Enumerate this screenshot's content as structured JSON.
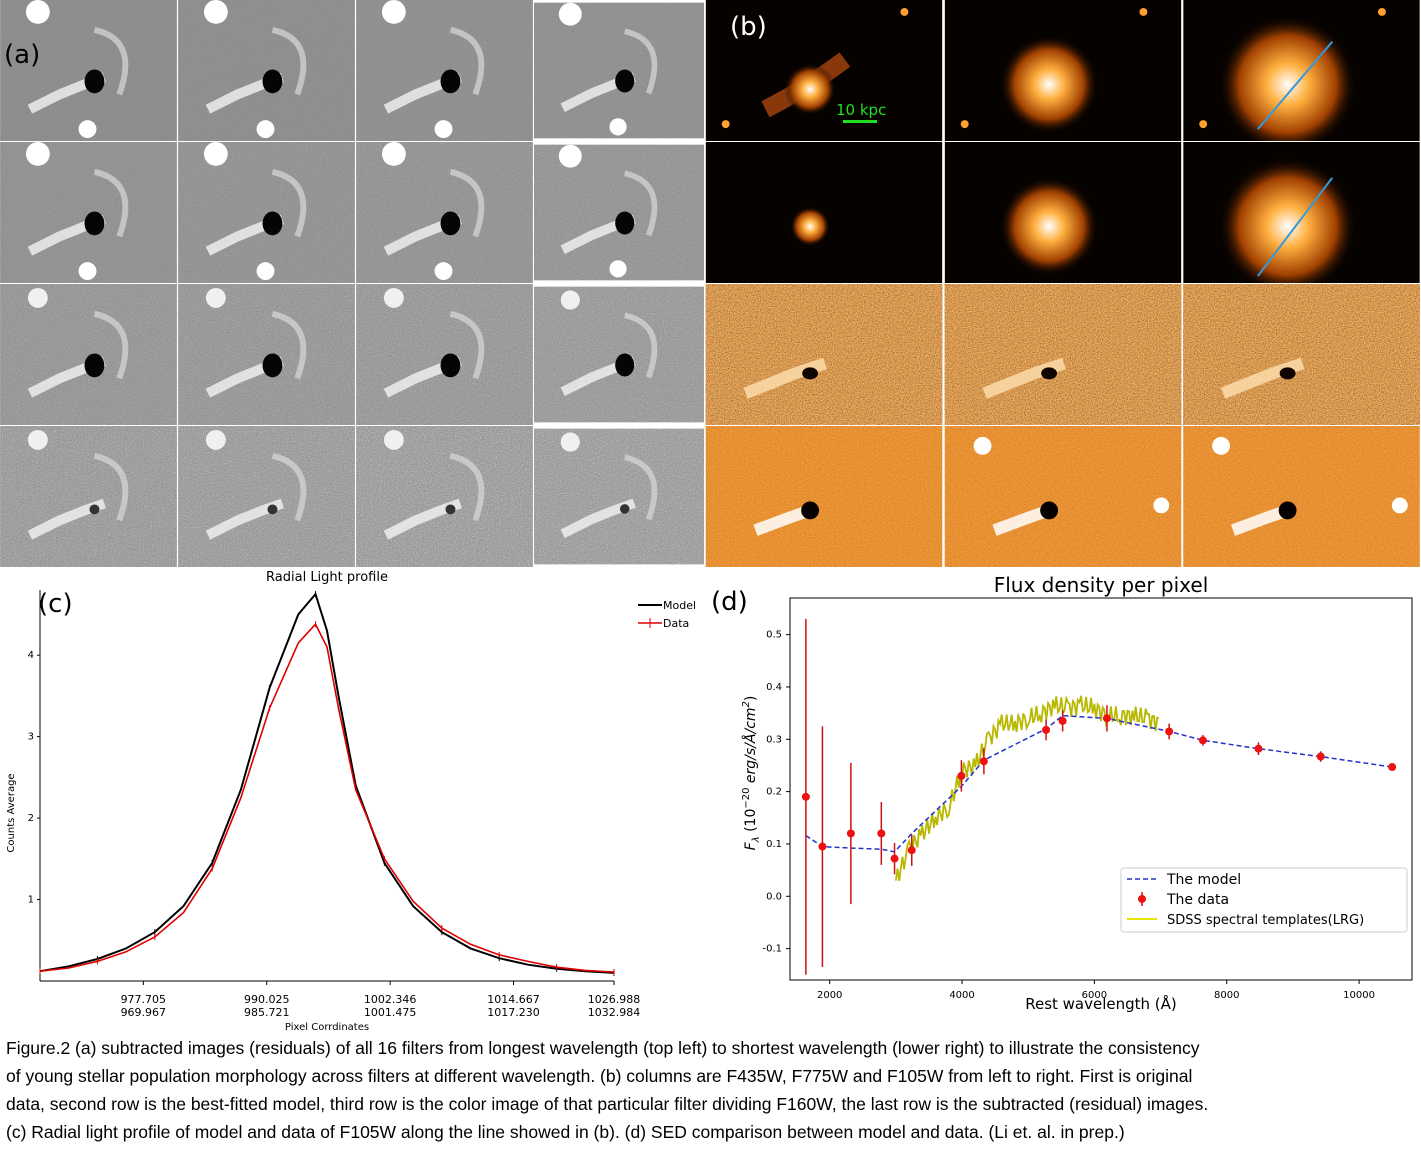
{
  "panel_a": {
    "label": "(a)"
  },
  "panel_b": {
    "label": "(b)",
    "scale_bar_label": "10 kpc"
  },
  "chart_data": [
    {
      "type": "line",
      "panel_label": "(c)",
      "title": "Radial Light profile",
      "xlabel": "Pixel Corrdinates",
      "ylabel": "Counts Average",
      "x_tick_labels_top": [
        "977.705",
        "990.025",
        "1002.346",
        "1014.667",
        "1026.988"
      ],
      "x_tick_labels_bottom": [
        "969.967",
        "985.721",
        "1001.475",
        "1017.230",
        "1032.984"
      ],
      "y_ticks": [
        1,
        2,
        3,
        4
      ],
      "ylim": [
        0,
        4.8
      ],
      "legend_position": "top-right",
      "x": [
        0,
        5,
        10,
        15,
        20,
        25,
        30,
        35,
        40,
        45,
        48,
        50,
        52,
        55,
        60,
        65,
        70,
        75,
        80,
        85,
        90,
        95,
        100
      ],
      "series": [
        {
          "name": "Model",
          "color": "#000000",
          "values": [
            0.12,
            0.18,
            0.27,
            0.4,
            0.6,
            0.92,
            1.45,
            2.35,
            3.6,
            4.5,
            4.75,
            4.3,
            3.5,
            2.4,
            1.45,
            0.92,
            0.6,
            0.4,
            0.28,
            0.2,
            0.15,
            0.12,
            0.1
          ]
        },
        {
          "name": "Data",
          "color": "#dd0000",
          "values": [
            0.12,
            0.16,
            0.24,
            0.36,
            0.54,
            0.84,
            1.38,
            2.25,
            3.35,
            4.15,
            4.38,
            4.1,
            3.35,
            2.35,
            1.5,
            0.98,
            0.65,
            0.45,
            0.32,
            0.24,
            0.17,
            0.13,
            0.11
          ]
        }
      ]
    },
    {
      "type": "scatter",
      "panel_label": "(d)",
      "title": "Flux density per pixel",
      "xlabel": "Rest wavelength (Å)",
      "ylabel": "F_λ (10^-20 erg/s/Å/cm^2)",
      "ylabel_main": "F",
      "ylabel_sub": "λ",
      "ylabel_rest": " (10",
      "ylabel_exp": "−20",
      "ylabel_tail": " erg/s/Å/cm",
      "ylabel_tail_exp": "2",
      "ylabel_close": ")",
      "xlim": [
        1400,
        10800
      ],
      "ylim": [
        -0.16,
        0.57
      ],
      "x_ticks": [
        2000,
        4000,
        6000,
        8000,
        10000
      ],
      "y_ticks": [
        -0.1,
        0.0,
        0.1,
        0.2,
        0.3,
        0.4,
        0.5
      ],
      "legend_position": "lower-right",
      "legend": [
        "The model",
        "The data",
        "SDSS spectral templates(LRG)"
      ],
      "data_points": [
        {
          "x": 1640,
          "y": 0.19,
          "err": 0.34
        },
        {
          "x": 1890,
          "y": 0.095,
          "err": 0.23
        },
        {
          "x": 2320,
          "y": 0.12,
          "err": 0.135
        },
        {
          "x": 2780,
          "y": 0.12,
          "err": 0.06
        },
        {
          "x": 2980,
          "y": 0.072,
          "err": 0.03
        },
        {
          "x": 3240,
          "y": 0.088,
          "err": 0.03
        },
        {
          "x": 3990,
          "y": 0.23,
          "err": 0.03
        },
        {
          "x": 4330,
          "y": 0.258,
          "err": 0.025
        },
        {
          "x": 5270,
          "y": 0.318,
          "err": 0.02
        },
        {
          "x": 5520,
          "y": 0.335,
          "err": 0.02
        },
        {
          "x": 6190,
          "y": 0.34,
          "err": 0.025
        },
        {
          "x": 7130,
          "y": 0.315,
          "err": 0.015
        },
        {
          "x": 7640,
          "y": 0.298,
          "err": 0.01
        },
        {
          "x": 8480,
          "y": 0.282,
          "err": 0.012
        },
        {
          "x": 9420,
          "y": 0.267,
          "err": 0.01
        },
        {
          "x": 10500,
          "y": 0.247,
          "err": 0.006
        }
      ],
      "model_x": [
        1640,
        1890,
        2320,
        2780,
        2980,
        3240,
        3990,
        4330,
        5270,
        5520,
        6190,
        7130,
        7640,
        8480,
        9420,
        10500
      ],
      "model_y": [
        0.116,
        0.095,
        0.092,
        0.09,
        0.085,
        0.12,
        0.21,
        0.26,
        0.32,
        0.345,
        0.34,
        0.315,
        0.298,
        0.282,
        0.267,
        0.247
      ],
      "template_x": [
        3000,
        3200,
        3400,
        3600,
        3800,
        4000,
        4200,
        4400,
        4600,
        4800,
        5000,
        5200,
        5400,
        5600,
        5800,
        6000,
        6200,
        6400,
        6600,
        6800,
        7000
      ],
      "template_y": [
        0.03,
        0.09,
        0.12,
        0.15,
        0.17,
        0.24,
        0.25,
        0.3,
        0.33,
        0.33,
        0.34,
        0.35,
        0.365,
        0.36,
        0.365,
        0.36,
        0.345,
        0.345,
        0.345,
        0.34,
        0.33
      ]
    }
  ],
  "caption": {
    "line1": "Figure.2     (a) subtracted images (residuals) of all 16 filters from longest wavelength (top left) to shortest wavelength (lower right) to illustrate the consistency",
    "line2": "of young stellar population morphology across filters at different wavelength.  (b) columns are F435W, F775W and F105W from left to right. First is original",
    "line3": "data, second row is the best-fitted model, third row is the color image of that particular filter dividing F160W, the last row is the subtracted (residual) images.",
    "line4": "(c) Radial light profile of model and data of F105W along the line showed in (b). (d) SED comparison between model and data. (Li et. al. in prep.)"
  }
}
